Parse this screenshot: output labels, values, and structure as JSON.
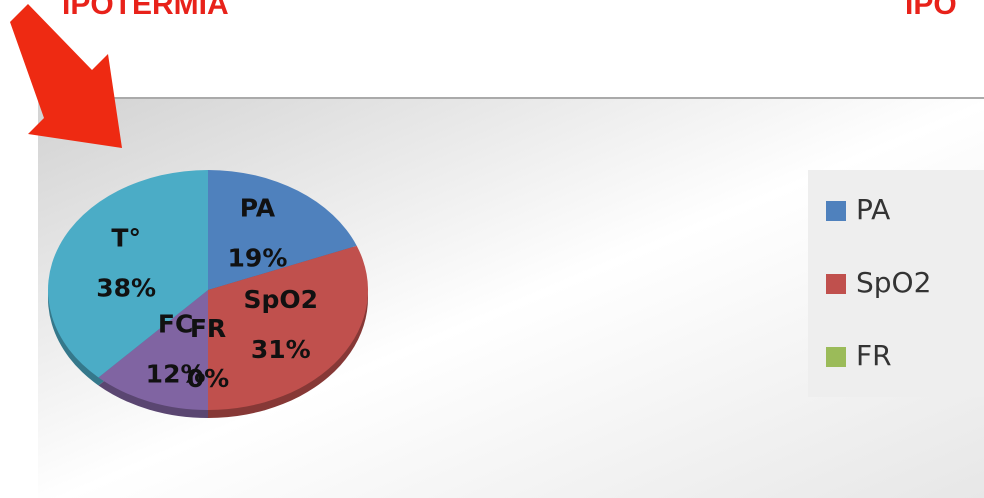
{
  "headings": [
    "IPOTERMIA",
    "IPO"
  ],
  "chart_data": {
    "type": "pie",
    "categories": [
      "PA",
      "SpO2",
      "FR",
      "FC",
      "T°"
    ],
    "values": [
      19,
      31,
      0,
      12,
      38
    ],
    "value_labels": [
      "19%",
      "31%",
      "0%",
      "12%",
      "38%"
    ],
    "colors": [
      "#4f81bd",
      "#c0504d",
      "#9bbb59",
      "#8064a2",
      "#4bacc6"
    ],
    "legend": "right"
  }
}
